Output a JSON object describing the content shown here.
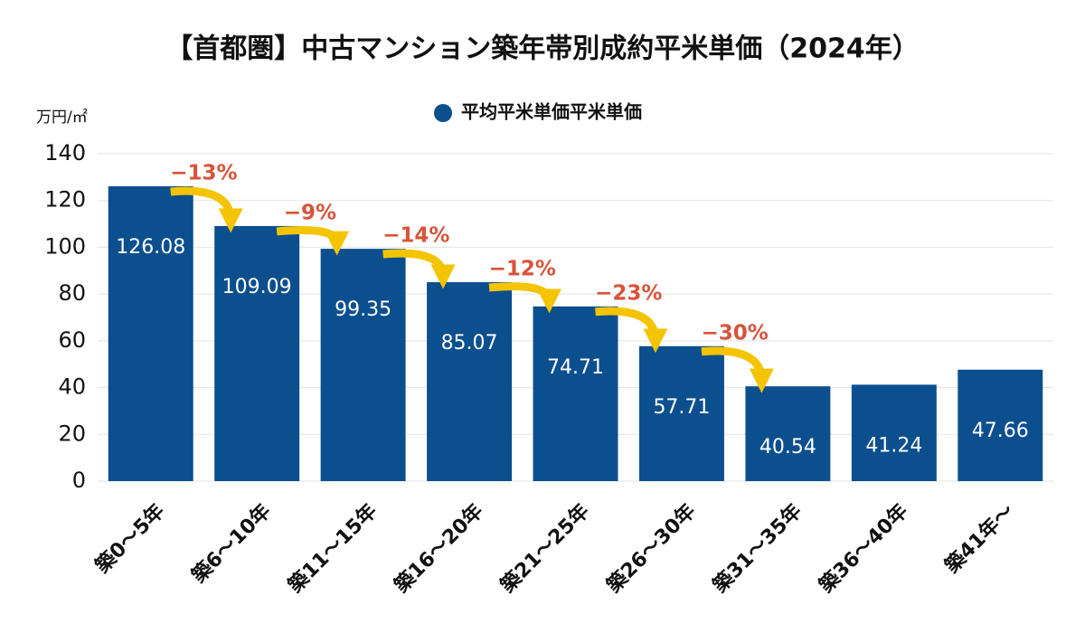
{
  "chart_data": {
    "type": "bar",
    "title": "【首都圏】中古マンション築年帯別成約平米単価（2024年）",
    "y_label": "万円/㎡",
    "categories": [
      "築0～5年",
      "築6～10年",
      "築11～15年",
      "築16～20年",
      "築21～25年",
      "築26～30年",
      "築31～35年",
      "築36～40年",
      "築41年～"
    ],
    "series": [
      {
        "name": "平均平米単価平米単価",
        "color": "#0b4f8f",
        "values": [
          126.08,
          109.09,
          99.35,
          85.07,
          74.71,
          57.71,
          40.54,
          41.24,
          47.66
        ]
      }
    ],
    "annotations": [
      "−13%",
      "−9%",
      "−14%",
      "−12%",
      "−23%",
      "−30%"
    ],
    "ylim": [
      0,
      140
    ],
    "yticks": [
      0,
      20,
      40,
      60,
      80,
      100,
      120,
      140
    ],
    "grid": true
  }
}
